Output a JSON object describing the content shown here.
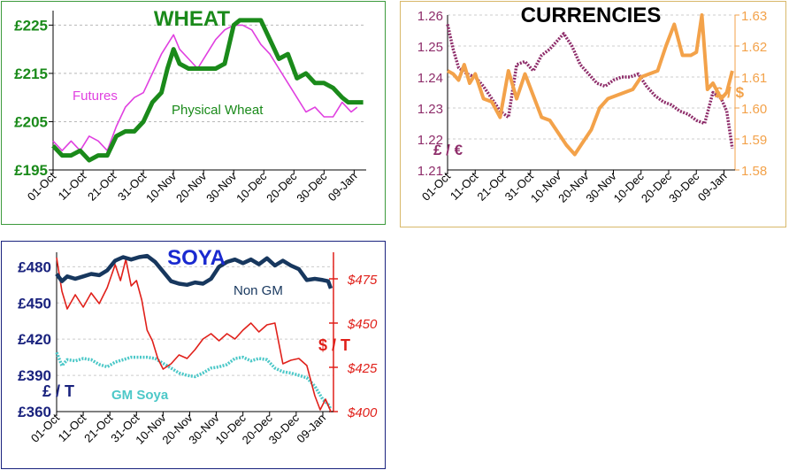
{
  "colors": {
    "wheat_futures": "#e040e0",
    "wheat_physical": "#1a8a1a",
    "wheat_title": "#1a8a1a",
    "eur": "#8e2d6a",
    "usd": "#f3a24a",
    "nongm": "#17375e",
    "gm": "#4cc8c8",
    "usd_soya": "#e0201a",
    "soya_title": "#1a2ad0"
  },
  "chart_data": [
    {
      "type": "line",
      "title": "WHEAT",
      "ylim": [
        195,
        228
      ],
      "y_ticks": [
        "£195",
        "£205",
        "£215",
        "£225"
      ],
      "y_tick_values": [
        195,
        205,
        215,
        225
      ],
      "x_ticks": [
        "01-Oct",
        "11-Oct",
        "21-Oct",
        "31-Oct",
        "10-Nov",
        "20-Nov",
        "30-Nov",
        "10-Dec",
        "20-Dec",
        "30-Dec",
        "09-Jan"
      ],
      "x_tick_days": [
        0,
        10,
        20,
        30,
        40,
        50,
        60,
        70,
        80,
        90,
        100
      ],
      "xlim": [
        0,
        104
      ],
      "series": [
        {
          "name": "Futures",
          "x": [
            0,
            3,
            6,
            9,
            12,
            15,
            18,
            21,
            24,
            27,
            30,
            33,
            36,
            39,
            40,
            42,
            45,
            48,
            51,
            54,
            57,
            60,
            63,
            66,
            69,
            72,
            75,
            78,
            81,
            84,
            87,
            90,
            93,
            96,
            99,
            101
          ],
          "values": [
            201,
            199,
            201,
            199,
            202,
            201,
            199,
            204,
            208,
            210,
            211,
            215,
            219,
            222,
            223,
            220,
            218,
            216,
            219,
            222,
            224,
            225,
            225,
            224,
            221,
            219,
            216,
            213,
            210,
            207,
            208,
            206,
            206,
            209,
            207,
            208
          ]
        },
        {
          "name": "Physical Wheat",
          "x": [
            0,
            3,
            6,
            9,
            12,
            15,
            18,
            21,
            24,
            27,
            30,
            33,
            36,
            38,
            40,
            42,
            45,
            48,
            51,
            54,
            57,
            60,
            62,
            64,
            66,
            69,
            72,
            75,
            78,
            81,
            84,
            87,
            90,
            93,
            96,
            98,
            100,
            103
          ],
          "values": [
            200,
            198,
            198,
            199,
            197,
            198,
            198,
            202,
            203,
            203,
            205,
            209,
            211,
            216,
            220,
            217,
            216,
            216,
            216,
            216,
            217,
            225,
            226,
            226,
            226,
            226,
            222,
            218,
            219,
            214,
            215,
            213,
            213,
            212,
            210,
            209,
            209,
            209
          ]
        }
      ],
      "annotations": [
        "Futures",
        "Physical Wheat"
      ]
    },
    {
      "type": "line",
      "title": "CURRENCIES",
      "left_axis_label": "£ / €",
      "right_axis_label": "£ / $",
      "left_ylim": [
        1.21,
        1.26
      ],
      "left_ticks": [
        "1.21",
        "1.22",
        "1.23",
        "1.24",
        "1.25",
        "1.26"
      ],
      "right_ylim": [
        1.58,
        1.63
      ],
      "right_ticks": [
        "1.58",
        "1.59",
        "1.60",
        "1.61",
        "1.62",
        "1.63"
      ],
      "x_ticks": [
        "01-Oct",
        "11-Oct",
        "21-Oct",
        "31-Oct",
        "10-Nov",
        "20-Nov",
        "30-Nov",
        "10-Dec",
        "20-Dec",
        "30-Dec",
        "09-Jan"
      ],
      "x_tick_days": [
        0,
        10,
        20,
        30,
        40,
        50,
        60,
        70,
        80,
        90,
        100
      ],
      "xlim": [
        0,
        104
      ],
      "series": [
        {
          "name": "£ / €",
          "axis": "left",
          "x": [
            0,
            2,
            4,
            7,
            10,
            13,
            16,
            19,
            22,
            25,
            28,
            31,
            34,
            37,
            40,
            42,
            45,
            48,
            51,
            54,
            57,
            60,
            63,
            66,
            69,
            72,
            75,
            78,
            81,
            84,
            87,
            90,
            93,
            96,
            99,
            101,
            103
          ],
          "values": [
            1.257,
            1.249,
            1.243,
            1.241,
            1.24,
            1.237,
            1.233,
            1.229,
            1.227,
            1.244,
            1.245,
            1.242,
            1.247,
            1.249,
            1.252,
            1.254,
            1.25,
            1.244,
            1.241,
            1.238,
            1.237,
            1.239,
            1.24,
            1.24,
            1.241,
            1.237,
            1.234,
            1.232,
            1.231,
            1.229,
            1.228,
            1.226,
            1.225,
            1.235,
            1.233,
            1.229,
            1.217
          ]
        },
        {
          "name": "£ / $",
          "axis": "right",
          "x": [
            0,
            2,
            4,
            6,
            8,
            10,
            13,
            16,
            19,
            22,
            25,
            28,
            31,
            34,
            37,
            40,
            43,
            46,
            49,
            52,
            55,
            58,
            61,
            64,
            67,
            70,
            73,
            76,
            79,
            82,
            85,
            88,
            90,
            92,
            94,
            96,
            99,
            101,
            103
          ],
          "values": [
            1.612,
            1.611,
            1.609,
            1.614,
            1.608,
            1.611,
            1.603,
            1.602,
            1.597,
            1.612,
            1.603,
            1.611,
            1.604,
            1.597,
            1.596,
            1.592,
            1.588,
            1.585,
            1.589,
            1.593,
            1.6,
            1.603,
            1.604,
            1.605,
            1.606,
            1.61,
            1.611,
            1.612,
            1.62,
            1.627,
            1.617,
            1.617,
            1.618,
            1.63,
            1.606,
            1.608,
            1.603,
            1.605,
            1.612
          ]
        }
      ]
    },
    {
      "type": "line",
      "title": "SOYA",
      "left_axis_label": "£ / T",
      "right_axis_label": "$ / T",
      "left_ylim": [
        360,
        492
      ],
      "left_ticks": [
        "£360",
        "£390",
        "£420",
        "£450",
        "£480"
      ],
      "left_tick_values": [
        360,
        390,
        420,
        450,
        480
      ],
      "right_ylim": [
        400,
        490
      ],
      "right_ticks": [
        "$400",
        "$425",
        "$450",
        "$475"
      ],
      "right_tick_values": [
        400,
        425,
        450,
        475
      ],
      "x_ticks": [
        "01-Oct",
        "11-Oct",
        "21-Oct",
        "31-Oct",
        "10-Nov",
        "20-Nov",
        "30-Nov",
        "10-Dec",
        "20-Dec",
        "30-Dec",
        "09-Jan"
      ],
      "x_tick_days": [
        0,
        10,
        20,
        30,
        40,
        50,
        60,
        70,
        80,
        90,
        100
      ],
      "xlim": [
        0,
        104
      ],
      "series": [
        {
          "name": "Non GM",
          "axis": "left",
          "x": [
            0,
            2,
            4,
            7,
            10,
            13,
            16,
            19,
            22,
            25,
            28,
            31,
            34,
            37,
            40,
            43,
            46,
            49,
            52,
            55,
            58,
            61,
            64,
            67,
            70,
            73,
            76,
            79,
            82,
            85,
            88,
            91,
            94,
            97,
            100,
            102,
            103
          ],
          "values": [
            474,
            468,
            472,
            470,
            472,
            474,
            473,
            477,
            485,
            488,
            486,
            488,
            489,
            484,
            476,
            468,
            466,
            465,
            467,
            466,
            470,
            480,
            484,
            486,
            483,
            486,
            482,
            487,
            481,
            485,
            481,
            478,
            469,
            470,
            469,
            468,
            462
          ]
        },
        {
          "name": "GM Soya",
          "axis": "left",
          "x": [
            0,
            2,
            4,
            7,
            10,
            13,
            16,
            19,
            22,
            25,
            28,
            31,
            34,
            37,
            40,
            43,
            46,
            49,
            52,
            55,
            58,
            61,
            64,
            67,
            70,
            73,
            76,
            79,
            82,
            85,
            88,
            91,
            94,
            97,
            100,
            102,
            103
          ],
          "values": [
            409,
            398,
            403,
            402,
            404,
            403,
            399,
            397,
            401,
            403,
            405,
            405,
            405,
            404,
            400,
            396,
            392,
            390,
            389,
            392,
            396,
            397,
            399,
            404,
            405,
            402,
            404,
            403,
            396,
            393,
            392,
            390,
            388,
            381,
            370,
            366,
            362
          ]
        },
        {
          "name": "$ / T",
          "axis": "right",
          "x": [
            0,
            2,
            4,
            7,
            10,
            13,
            16,
            19,
            22,
            24,
            26,
            28,
            30,
            32,
            34,
            36,
            38,
            40,
            43,
            46,
            49,
            52,
            55,
            58,
            61,
            64,
            67,
            70,
            73,
            76,
            79,
            82,
            85,
            88,
            91,
            94,
            97,
            99,
            101,
            103
          ],
          "values": [
            487,
            468,
            458,
            466,
            459,
            467,
            461,
            470,
            483,
            474,
            486,
            471,
            474,
            463,
            446,
            440,
            430,
            424,
            427,
            432,
            430,
            435,
            441,
            444,
            440,
            444,
            441,
            446,
            450,
            445,
            449,
            450,
            427,
            429,
            430,
            426,
            409,
            401,
            407,
            400
          ]
        }
      ]
    }
  ]
}
